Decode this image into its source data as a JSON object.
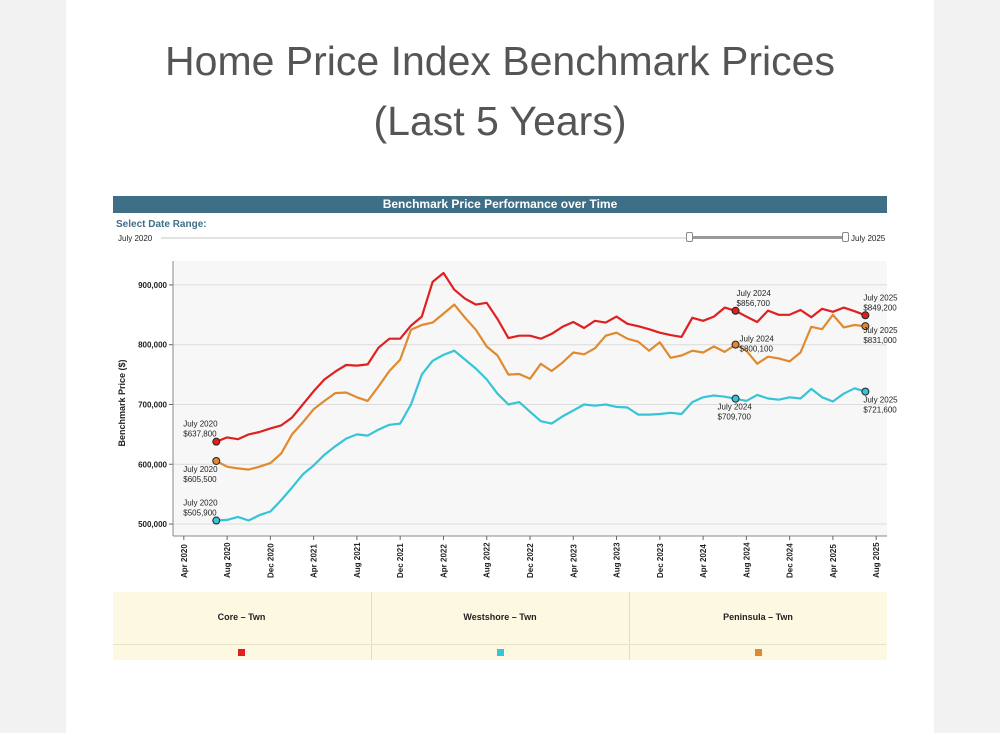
{
  "page": {
    "title_line1": "Home Price Index Benchmark Prices",
    "title_line2": "(Last 5 Years)"
  },
  "widget": {
    "bar_title": "Benchmark Price Performance over Time",
    "range_label": "Select Date Range:",
    "range_start": "July 2020",
    "range_end": "July 2025"
  },
  "chart_data": {
    "type": "line",
    "ylabel": "Benchmark Price ($)",
    "xlabel": "",
    "ylim": [
      480000,
      940000
    ],
    "yticks": [
      500000,
      600000,
      700000,
      800000,
      900000
    ],
    "ytick_labels": [
      "500,000",
      "600,000",
      "700,000",
      "800,000",
      "900,000"
    ],
    "x_start": "2020-07",
    "x_axis_start": "2020-03",
    "x_axis_end": "2025-09",
    "xtick_labels": [
      "Apr 2020",
      "Aug 2020",
      "Dec 2020",
      "Apr 2021",
      "Aug 2021",
      "Dec 2021",
      "Apr 2022",
      "Aug 2022",
      "Dec 2022",
      "Apr 2023",
      "Aug 2023",
      "Dec 2023",
      "Apr 2024",
      "Aug 2024",
      "Dec 2024",
      "Apr 2025",
      "Aug 2025"
    ],
    "xtick_dates": [
      "2020-04",
      "2020-08",
      "2020-12",
      "2021-04",
      "2021-08",
      "2021-12",
      "2022-04",
      "2022-08",
      "2022-12",
      "2023-04",
      "2023-08",
      "2023-12",
      "2024-04",
      "2024-08",
      "2024-12",
      "2025-04",
      "2025-08"
    ],
    "grid": true,
    "legend_position": "bottom",
    "series": [
      {
        "name": "Core – Twn",
        "color": "#e02020",
        "values": [
          637800,
          645000,
          642000,
          650000,
          654000,
          660000,
          665000,
          678000,
          700000,
          722000,
          742000,
          755000,
          766000,
          765000,
          767000,
          795000,
          810000,
          810000,
          832000,
          847000,
          905000,
          920000,
          892000,
          877000,
          867000,
          870000,
          843000,
          811000,
          815000,
          815000,
          810000,
          818000,
          830000,
          838000,
          828000,
          840000,
          837000,
          847000,
          835000,
          831000,
          826000,
          820000,
          816000,
          813000,
          845000,
          840000,
          847000,
          862000,
          856700,
          847000,
          838000,
          857000,
          850000,
          850000,
          858000,
          846000,
          860000,
          855000,
          862000,
          856000,
          849200
        ]
      },
      {
        "name": "Westshore – Twn",
        "color": "#35c4d8",
        "values": [
          505900,
          507000,
          512000,
          506000,
          515000,
          521000,
          540000,
          561000,
          583000,
          598000,
          616000,
          630000,
          643000,
          650000,
          648000,
          658000,
          666000,
          668000,
          700000,
          750000,
          773000,
          783000,
          790000,
          775000,
          760000,
          742000,
          718000,
          700000,
          704000,
          688000,
          672000,
          668000,
          680000,
          690000,
          700000,
          698000,
          700000,
          696000,
          695000,
          683000,
          683000,
          684000,
          686000,
          684000,
          704000,
          712000,
          715000,
          713000,
          709700,
          706000,
          716000,
          710000,
          708000,
          712000,
          710000,
          726000,
          712000,
          705000,
          718000,
          727000,
          721600
        ]
      },
      {
        "name": "Peninsula – Twn",
        "color": "#e08a30",
        "values": [
          605500,
          596000,
          593000,
          591000,
          596000,
          602000,
          618000,
          650000,
          670000,
          692000,
          706000,
          719000,
          720000,
          712000,
          706000,
          730000,
          756000,
          775000,
          825000,
          833000,
          837000,
          852000,
          867000,
          845000,
          825000,
          797000,
          782000,
          750000,
          751000,
          743000,
          768000,
          756000,
          770000,
          787000,
          784000,
          794000,
          815000,
          820000,
          810000,
          805000,
          790000,
          804000,
          778000,
          782000,
          790000,
          787000,
          797000,
          788000,
          800100,
          790000,
          768000,
          780000,
          777000,
          772000,
          787000,
          830000,
          826000,
          850000,
          829000,
          833000,
          831000
        ]
      }
    ],
    "annotations": [
      {
        "series": 0,
        "index": 0,
        "date": "July 2020",
        "value": "$637,800"
      },
      {
        "series": 2,
        "index": 0,
        "date": "July 2020",
        "value": "$605,500"
      },
      {
        "series": 1,
        "index": 0,
        "date": "July 2020",
        "value": "$505,900"
      },
      {
        "series": 0,
        "index": 48,
        "date": "July 2024",
        "value": "$856,700"
      },
      {
        "series": 2,
        "index": 48,
        "date": "July 2024",
        "value": "$800,100"
      },
      {
        "series": 1,
        "index": 48,
        "date": "July 2024",
        "value": "$709,700"
      },
      {
        "series": 0,
        "index": 60,
        "date": "July 2025",
        "value": "$849,200"
      },
      {
        "series": 2,
        "index": 60,
        "date": "July 2025",
        "value": "$831,000"
      },
      {
        "series": 1,
        "index": 60,
        "date": "July 2025",
        "value": "$721,600"
      }
    ]
  },
  "legend": {
    "items": [
      {
        "label": "Core – Twn",
        "color": "#e02020"
      },
      {
        "label": "Westshore – Twn",
        "color": "#35c4d8"
      },
      {
        "label": "Peninsula – Twn",
        "color": "#e08a30"
      }
    ]
  }
}
